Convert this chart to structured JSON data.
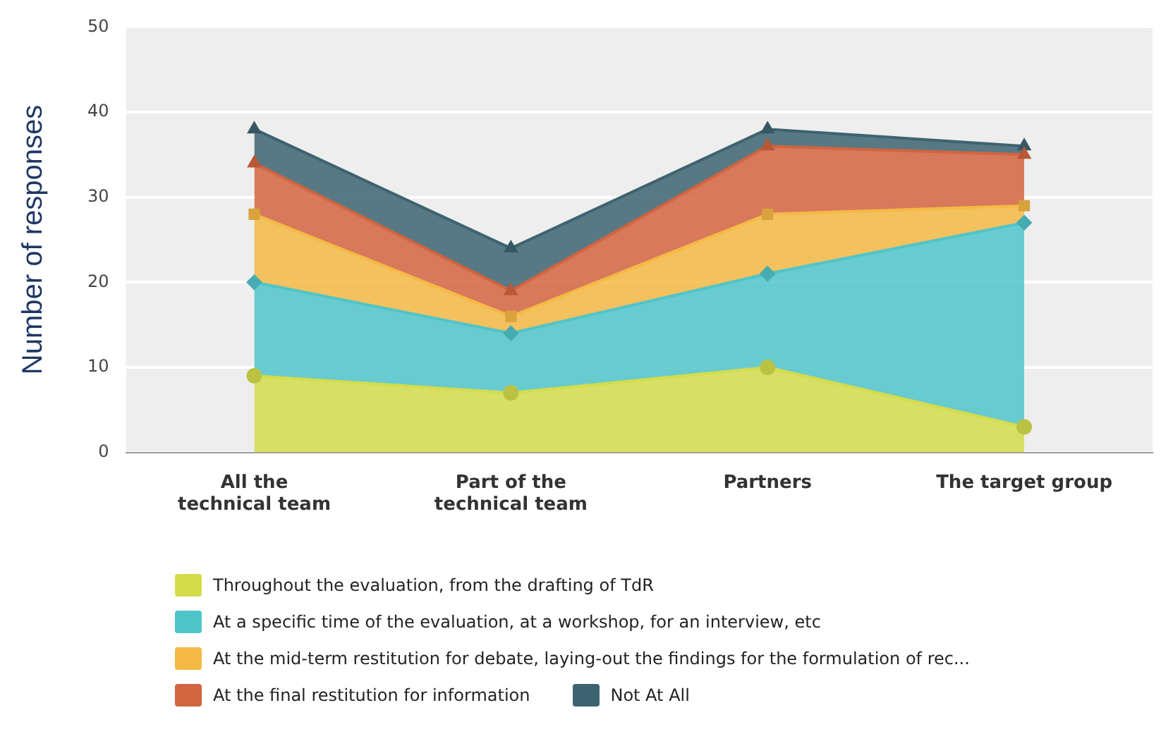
{
  "chart_data": {
    "type": "area",
    "ylabel": "Number of responses",
    "categories": [
      "All the technical team",
      "Part of the technical team",
      "Partners",
      "The target group"
    ],
    "stacked": true,
    "ylim": [
      0,
      50
    ],
    "yticks": [
      0,
      10,
      20,
      30,
      40,
      50
    ],
    "grid": "y",
    "legend": "bottom",
    "series": [
      {
        "name": "Throughout the evaluation, from the drafting of TdR",
        "color": "#d4dc4c",
        "marker": "circle",
        "values": [
          9,
          7,
          10,
          3
        ]
      },
      {
        "name": "At a specific time of the evaluation, at a workshop, for an interview, etc",
        "color": "#4fc4c9",
        "marker": "diamond",
        "values": [
          11,
          7,
          11,
          24
        ]
      },
      {
        "name": "At the mid-term restitution for debate, laying-out the findings for the formulation of rec...",
        "color": "#f5b945",
        "marker": "square",
        "values": [
          8,
          2,
          7,
          2
        ]
      },
      {
        "name": "At the final restitution for information",
        "color": "#d2643f",
        "marker": "triangle",
        "values": [
          6,
          3,
          8,
          6
        ]
      },
      {
        "name": "Not At All",
        "color": "#3d6370",
        "marker": "triangle",
        "values": [
          4,
          5,
          2,
          1
        ]
      }
    ]
  }
}
